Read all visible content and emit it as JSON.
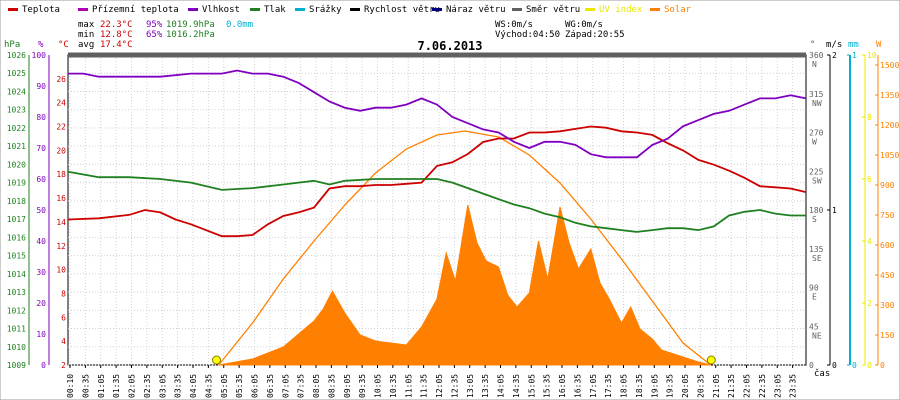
{
  "legend": [
    {
      "label": "Teplota",
      "color": "#cc0000"
    },
    {
      "label": "Přízemní teplota",
      "color": "#b000b0"
    },
    {
      "label": "Vlhkost",
      "color": "#8000c0"
    },
    {
      "label": "Tlak",
      "color": "#208020"
    },
    {
      "label": "Srážky",
      "color": "#00b0d0"
    },
    {
      "label": "Rychlost větru",
      "color": "#000000"
    },
    {
      "label": "Náraz větru",
      "color": "#000080"
    },
    {
      "label": "Směr větru",
      "color": "#606060"
    },
    {
      "label": "UV index",
      "color": "#e8e800"
    },
    {
      "label": "Solar",
      "color": "#ff8000"
    }
  ],
  "stats": {
    "max": {
      "label": "max",
      "temp": "22.3°C",
      "hum": "95%",
      "press": "1019.9hPa",
      "rain": "0.0mm"
    },
    "min": {
      "label": "min",
      "temp": "12.8°C",
      "hum": "65%",
      "press": "1016.2hPa"
    },
    "avg": {
      "label": "avg",
      "temp": "17.4°C"
    }
  },
  "wind": {
    "ws": "WS:0m/s",
    "wg": "WG:0m/s"
  },
  "sun": {
    "rise": "Východ:04:50",
    "set": "Západ:20:55"
  },
  "chart_data": {
    "type": "line",
    "title": "7.06.2013",
    "xlabel": "čas",
    "x_ticks": [
      "00:10",
      "00:35",
      "01:05",
      "01:35",
      "02:05",
      "02:35",
      "03:05",
      "03:35",
      "04:05",
      "04:35",
      "05:05",
      "05:35",
      "06:05",
      "06:35",
      "07:05",
      "07:35",
      "08:05",
      "08:35",
      "09:05",
      "09:35",
      "10:05",
      "10:35",
      "11:05",
      "11:35",
      "12:05",
      "12:35",
      "13:05",
      "13:35",
      "14:05",
      "14:35",
      "15:05",
      "15:35",
      "16:05",
      "16:35",
      "17:05",
      "17:35",
      "18:05",
      "18:35",
      "19:05",
      "19:35",
      "20:05",
      "20:35",
      "21:05",
      "21:35",
      "22:05",
      "22:35",
      "23:05",
      "23:35"
    ],
    "axes": {
      "pressure": {
        "unit": "hPa",
        "range": [
          1009,
          1026
        ],
        "ticks": [
          "1026",
          "1025",
          "1024",
          "1023",
          "1022",
          "1021",
          "1020",
          "1019",
          "1018",
          "1017",
          "1016",
          "1015",
          "1014",
          "1013",
          "1012",
          "1011",
          "1010",
          "1009"
        ]
      },
      "humidity": {
        "unit": "%",
        "range": [
          0,
          100
        ],
        "ticks": [
          "100",
          "90",
          "80",
          "70",
          "60",
          "50",
          "40",
          "30",
          "20",
          "10",
          "0"
        ]
      },
      "temperature": {
        "unit": "°C",
        "range": [
          2,
          28
        ],
        "ticks": [
          "26",
          "24",
          "22",
          "20",
          "18",
          "16",
          "14",
          "12",
          "10",
          "8",
          "6",
          "4",
          "2"
        ]
      },
      "direction": {
        "unit": "°",
        "range": [
          0,
          360
        ],
        "ticks": [
          {
            "v": "360",
            "d": "N"
          },
          {
            "v": "315",
            "d": "NW"
          },
          {
            "v": "270",
            "d": "W"
          },
          {
            "v": "225",
            "d": "SW"
          },
          {
            "v": "180",
            "d": "S"
          },
          {
            "v": "135",
            "d": "SE"
          },
          {
            "v": "90",
            "d": "E"
          },
          {
            "v": "45",
            "d": "NE"
          },
          {
            "v": "0",
            "d": ""
          }
        ]
      },
      "wind": {
        "unit": "m/s",
        "range": [
          0,
          2
        ],
        "ticks": [
          "2",
          "1",
          "0"
        ]
      },
      "rain": {
        "unit": "mm",
        "range": [
          0,
          1
        ],
        "ticks": [
          "1",
          "0"
        ]
      },
      "uv": {
        "unit": "",
        "range": [
          0,
          10
        ],
        "ticks": [
          "10",
          "8",
          "6",
          "4",
          "2",
          "0"
        ]
      },
      "solar": {
        "unit": "W",
        "range": [
          0,
          1550
        ],
        "ticks": [
          "1500",
          "1350",
          "1200",
          "1050",
          "900",
          "750",
          "600",
          "450",
          "300",
          "150",
          "0"
        ]
      }
    },
    "series": [
      {
        "name": "Teplota",
        "axis": "temperature",
        "color": "#cc0000",
        "x": [
          0,
          1,
          2,
          2.5,
          3,
          3.5,
          4,
          5,
          5.5,
          6,
          6.5,
          7,
          7.5,
          8,
          8.5,
          9,
          9.5,
          10,
          10.5,
          11,
          11.5,
          12,
          12.5,
          13,
          13.5,
          14,
          14.5,
          15,
          15.5,
          16,
          16.5,
          17,
          17.5,
          18,
          18.5,
          19,
          19.5,
          20,
          20.5,
          21,
          21.5,
          22,
          22.5,
          23,
          23.5,
          24
        ],
        "y": [
          14.2,
          14.3,
          14.6,
          15.0,
          14.8,
          14.2,
          13.8,
          12.8,
          12.8,
          12.9,
          13.8,
          14.5,
          14.8,
          15.2,
          16.8,
          17.0,
          17.0,
          17.1,
          17.1,
          17.2,
          17.3,
          18.7,
          19.0,
          19.7,
          20.7,
          21.0,
          21.0,
          21.5,
          21.5,
          21.6,
          21.8,
          22.0,
          21.9,
          21.6,
          21.5,
          21.3,
          20.6,
          20.0,
          19.2,
          18.8,
          18.3,
          17.7,
          17.0,
          16.9,
          16.8,
          16.5
        ]
      },
      {
        "name": "Vlhkost",
        "axis": "humidity",
        "color": "#8000c0",
        "x": [
          0,
          0.5,
          1,
          2,
          3,
          4,
          4.5,
          5,
          5.5,
          6,
          6.5,
          7,
          7.5,
          8,
          8.5,
          9,
          9.5,
          10,
          10.5,
          11,
          11.5,
          12,
          12.5,
          13,
          13.5,
          14,
          14.5,
          15,
          15.5,
          16,
          16.5,
          17,
          17.5,
          18,
          18.5,
          19,
          19.5,
          20,
          20.5,
          21,
          21.5,
          22,
          22.5,
          23,
          23.5,
          24
        ],
        "y": [
          94,
          94,
          93,
          93,
          93,
          94,
          94,
          94,
          95,
          94,
          94,
          93,
          91,
          88,
          85,
          83,
          82,
          83,
          83,
          84,
          86,
          84,
          80,
          78,
          76,
          75,
          72,
          70,
          72,
          72,
          71,
          68,
          67,
          67,
          67,
          71,
          73,
          77,
          79,
          81,
          82,
          84,
          86,
          86,
          87,
          86
        ]
      },
      {
        "name": "Tlak",
        "axis": "pressure",
        "color": "#208020",
        "x": [
          0,
          1,
          2,
          3,
          4,
          5,
          6,
          7,
          7.5,
          8,
          8.5,
          9,
          10,
          11,
          12,
          12.5,
          13,
          13.5,
          14,
          14.5,
          15,
          15.5,
          16,
          16.5,
          17,
          17.5,
          18,
          18.5,
          19,
          19.5,
          20,
          20.5,
          21,
          21.5,
          22,
          22.5,
          23,
          23.5,
          24
        ],
        "y": [
          1019.6,
          1019.3,
          1019.3,
          1019.2,
          1019.0,
          1018.6,
          1018.7,
          1018.9,
          1019.0,
          1019.1,
          1018.9,
          1019.1,
          1019.2,
          1019.2,
          1019.2,
          1019.0,
          1018.7,
          1018.4,
          1018.1,
          1017.8,
          1017.6,
          1017.3,
          1017.1,
          1016.8,
          1016.6,
          1016.5,
          1016.4,
          1016.3,
          1016.4,
          1016.5,
          1016.5,
          1016.4,
          1016.6,
          1017.2,
          1017.4,
          1017.5,
          1017.3,
          1017.2,
          1017.2
        ]
      },
      {
        "name": "Solar",
        "axis": "solar",
        "color": "#ff8000",
        "fill": true,
        "x": [
          4.9,
          6,
          7,
          8,
          8.3,
          8.6,
          9,
          9.5,
          10,
          10.5,
          11,
          11.5,
          12,
          12.3,
          12.6,
          13,
          13.3,
          13.6,
          14,
          14.3,
          14.6,
          15,
          15.3,
          15.6,
          16,
          16.3,
          16.6,
          17,
          17.3,
          17.6,
          18,
          18.3,
          18.6,
          19,
          19.3,
          19.6,
          20,
          20.5,
          20.9
        ],
        "y": [
          0,
          30,
          90,
          220,
          280,
          370,
          260,
          150,
          120,
          110,
          100,
          190,
          330,
          560,
          420,
          800,
          610,
          520,
          490,
          350,
          290,
          360,
          620,
          430,
          790,
          610,
          480,
          580,
          410,
          330,
          210,
          290,
          180,
          130,
          75,
          60,
          40,
          15,
          0
        ]
      },
      {
        "name": "Solar (max)",
        "axis": "solar",
        "color": "#ff8000",
        "x": [
          4.9,
          6,
          7,
          8,
          9,
          10,
          11,
          12,
          12.9,
          14,
          15,
          16,
          17,
          18,
          19,
          20,
          20.9
        ],
        "y": [
          0,
          210,
          430,
          620,
          800,
          960,
          1080,
          1150,
          1170,
          1140,
          1050,
          910,
          730,
          530,
          320,
          110,
          0
        ]
      },
      {
        "name": "Směr větru",
        "axis": "direction",
        "color": "#606060",
        "x": [
          0,
          24
        ],
        "y": [
          360,
          360
        ]
      }
    ],
    "markers": [
      {
        "name": "sunrise",
        "time": "04:50",
        "x": 4.83
      },
      {
        "name": "sunset",
        "time": "20:55",
        "x": 20.92
      }
    ],
    "grid": true
  }
}
